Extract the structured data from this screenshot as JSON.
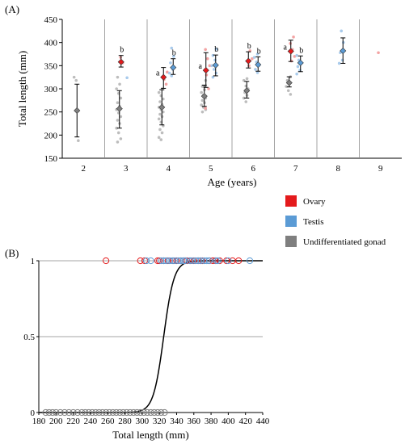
{
  "panel_a_label": "(A)",
  "panel_b_label": "(B)",
  "colors": {
    "ovary": "#e41a1c",
    "testis": "#5b9bd5",
    "undiff": "#7f7f7f",
    "ovary_light": "#f3a3a3",
    "testis_light": "#a9cbec",
    "undiff_light": "#bdbdbd"
  },
  "legend": [
    {
      "key": "ovary",
      "label": "Ovary"
    },
    {
      "key": "testis",
      "label": "Testis"
    },
    {
      "key": "undiff",
      "label": "Undifferentiated gonad"
    }
  ],
  "chart_data": [
    {
      "type": "scatter",
      "xlabel": "Age (years)",
      "ylabel": "Total length (mm)",
      "ylim": [
        150,
        450
      ],
      "yticks": [
        150,
        200,
        250,
        300,
        350,
        400,
        450
      ],
      "categories": [
        "2",
        "3",
        "4",
        "5",
        "6",
        "7",
        "8",
        "9"
      ],
      "grid": "vertical separators",
      "series": [
        {
          "name": "Undifferentiated gonad",
          "key": "undiff",
          "means": [
            {
              "x": "2",
              "mean": 253,
              "lo": 196,
              "hi": 310
            },
            {
              "x": "3",
              "mean": 257,
              "lo": 215,
              "hi": 296
            },
            {
              "x": "4",
              "mean": 260,
              "lo": 222,
              "hi": 298
            },
            {
              "x": "5",
              "mean": 284,
              "lo": 262,
              "hi": 308
            },
            {
              "x": "6",
              "mean": 296,
              "lo": 280,
              "hi": 316
            },
            {
              "x": "7",
              "mean": 313,
              "lo": 304,
              "hi": 326
            }
          ],
          "points": [
            [
              "2",
              325
            ],
            [
              "2",
              318
            ],
            [
              "2",
              188
            ],
            [
              "3",
              325
            ],
            [
              "3",
              310
            ],
            [
              "3",
              300
            ],
            [
              "3",
              290
            ],
            [
              "3",
              280
            ],
            [
              "3",
              270
            ],
            [
              "3",
              262
            ],
            [
              "3",
              255
            ],
            [
              "3",
              248
            ],
            [
              "3",
              240
            ],
            [
              "3",
              232
            ],
            [
              "3",
              225
            ],
            [
              "3",
              215
            ],
            [
              "3",
              205
            ],
            [
              "3",
              192
            ],
            [
              "3",
              185
            ],
            [
              "4",
              300
            ],
            [
              "4",
              292
            ],
            [
              "4",
              285
            ],
            [
              "4",
              278
            ],
            [
              "4",
              272
            ],
            [
              "4",
              266
            ],
            [
              "4",
              260
            ],
            [
              "4",
              255
            ],
            [
              "4",
              250
            ],
            [
              "4",
              245
            ],
            [
              "4",
              240
            ],
            [
              "4",
              235
            ],
            [
              "4",
              228
            ],
            [
              "4",
              220
            ],
            [
              "4",
              212
            ],
            [
              "4",
              205
            ],
            [
              "4",
              195
            ],
            [
              "4",
              190
            ],
            [
              "5",
              318
            ],
            [
              "5",
              305
            ],
            [
              "5",
              298
            ],
            [
              "5",
              292
            ],
            [
              "5",
              286
            ],
            [
              "5",
              280
            ],
            [
              "5",
              275
            ],
            [
              "5",
              270
            ],
            [
              "5",
              265
            ],
            [
              "5",
              260
            ],
            [
              "5",
              255
            ],
            [
              "5",
              250
            ],
            [
              "6",
              322
            ],
            [
              "6",
              318
            ],
            [
              "6",
              306
            ],
            [
              "6",
              300
            ],
            [
              "6",
              292
            ],
            [
              "6",
              286
            ],
            [
              "6",
              280
            ],
            [
              "6",
              272
            ],
            [
              "7",
              326
            ],
            [
              "7",
              318
            ],
            [
              "7",
              312
            ],
            [
              "7",
              305
            ],
            [
              "7",
              296
            ],
            [
              "7",
              288
            ]
          ]
        },
        {
          "name": "Ovary",
          "key": "ovary",
          "means": [
            {
              "x": "3",
              "mean": 358,
              "lo": 347,
              "hi": 372
            },
            {
              "x": "4",
              "mean": 325,
              "lo": 301,
              "hi": 346
            },
            {
              "x": "5",
              "mean": 340,
              "lo": 303,
              "hi": 378
            },
            {
              "x": "6",
              "mean": 360,
              "lo": 345,
              "hi": 380
            },
            {
              "x": "7",
              "mean": 381,
              "lo": 359,
              "hi": 405
            }
          ],
          "points": [
            [
              "3",
              368
            ],
            [
              "3",
              356
            ],
            [
              "4",
              336
            ],
            [
              "4",
              320
            ],
            [
              "4",
              310
            ],
            [
              "5",
              385
            ],
            [
              "5",
              365
            ],
            [
              "5",
              350
            ],
            [
              "5",
              330
            ],
            [
              "5",
              300
            ],
            [
              "5",
              258
            ],
            [
              "6",
              382
            ],
            [
              "6",
              365
            ],
            [
              "6",
              350
            ],
            [
              "7",
              412
            ],
            [
              "7",
              398
            ],
            [
              "7",
              385
            ],
            [
              "7",
              370
            ],
            [
              "7",
              360
            ],
            [
              "9",
              378
            ]
          ]
        },
        {
          "name": "Testis",
          "key": "testis",
          "means": [
            {
              "x": "4",
              "mean": 346,
              "lo": 331,
              "hi": 365
            },
            {
              "x": "5",
              "mean": 351,
              "lo": 328,
              "hi": 373
            },
            {
              "x": "6",
              "mean": 352,
              "lo": 338,
              "hi": 369
            },
            {
              "x": "7",
              "mean": 356,
              "lo": 337,
              "hi": 371
            },
            {
              "x": "8",
              "mean": 382,
              "lo": 355,
              "hi": 410
            }
          ],
          "points": [
            [
              "3",
              324
            ],
            [
              "4",
              388
            ],
            [
              "4",
              370
            ],
            [
              "4",
              356
            ],
            [
              "4",
              342
            ],
            [
              "4",
              334
            ],
            [
              "4",
              328
            ],
            [
              "5",
              386
            ],
            [
              "5",
              372
            ],
            [
              "5",
              362
            ],
            [
              "5",
              350
            ],
            [
              "5",
              342
            ],
            [
              "5",
              334
            ],
            [
              "5",
              325
            ],
            [
              "6",
              375
            ],
            [
              "6",
              368
            ],
            [
              "6",
              358
            ],
            [
              "6",
              350
            ],
            [
              "6",
              342
            ],
            [
              "6",
              335
            ],
            [
              "7",
              372
            ],
            [
              "7",
              362
            ],
            [
              "7",
              355
            ],
            [
              "7",
              348
            ],
            [
              "7",
              340
            ],
            [
              "7",
              332
            ],
            [
              "8",
              425
            ],
            [
              "8",
              400
            ],
            [
              "8",
              378
            ],
            [
              "8",
              362
            ],
            [
              "8",
              355
            ]
          ]
        }
      ],
      "annotations": [
        {
          "x": "3",
          "letter": "b",
          "series": "ovary"
        },
        {
          "x": "4",
          "letter": "a",
          "series": "ovary"
        },
        {
          "x": "4",
          "letter": "b",
          "series": "testis"
        },
        {
          "x": "5",
          "letter": "a",
          "series": "ovary"
        },
        {
          "x": "5",
          "letter": "b",
          "series": "testis"
        },
        {
          "x": "6",
          "letter": "b",
          "series": "ovary"
        },
        {
          "x": "6",
          "letter": "b",
          "series": "testis"
        },
        {
          "x": "7",
          "letter": "a",
          "series": "ovary"
        },
        {
          "x": "7",
          "letter": "b",
          "series": "testis"
        }
      ]
    },
    {
      "type": "scatter",
      "xlabel": "Total length (mm)",
      "ylabel": "",
      "xlim": [
        180,
        440
      ],
      "xticks": [
        180,
        200,
        220,
        240,
        260,
        280,
        300,
        320,
        340,
        360,
        380,
        400,
        420,
        440
      ],
      "ylim": [
        0,
        1
      ],
      "yticks": [
        0,
        0.5,
        1
      ],
      "yticklabels": [
        "0",
        "0.5",
        "1"
      ],
      "grid": "horizontal at 0.5 and 1",
      "curve": {
        "midpoint": 325,
        "scale": 6
      },
      "series": [
        {
          "name": "Undifferentiated gonad",
          "key": "undiff",
          "y": 0,
          "x": [
            188,
            192,
            196,
            200,
            205,
            210,
            215,
            220,
            225,
            230,
            234,
            238,
            242,
            246,
            250,
            254,
            258,
            262,
            266,
            270,
            274,
            278,
            282,
            286,
            290,
            294,
            298,
            302,
            306,
            310,
            314,
            318,
            322,
            326
          ]
        },
        {
          "name": "Ovary",
          "key": "ovary",
          "y": 1,
          "x": [
            258,
            298,
            303,
            318,
            320,
            325,
            330,
            336,
            340,
            345,
            348,
            350,
            352,
            356,
            360,
            365,
            368,
            370,
            378,
            382,
            385,
            390,
            398,
            405,
            412
          ]
        },
        {
          "name": "Testis",
          "key": "testis",
          "y": 1,
          "x": [
            305,
            310,
            322,
            325,
            328,
            332,
            335,
            338,
            342,
            345,
            348,
            350,
            355,
            358,
            362,
            365,
            368,
            372,
            375,
            378,
            386,
            388,
            400,
            425
          ]
        }
      ]
    }
  ]
}
